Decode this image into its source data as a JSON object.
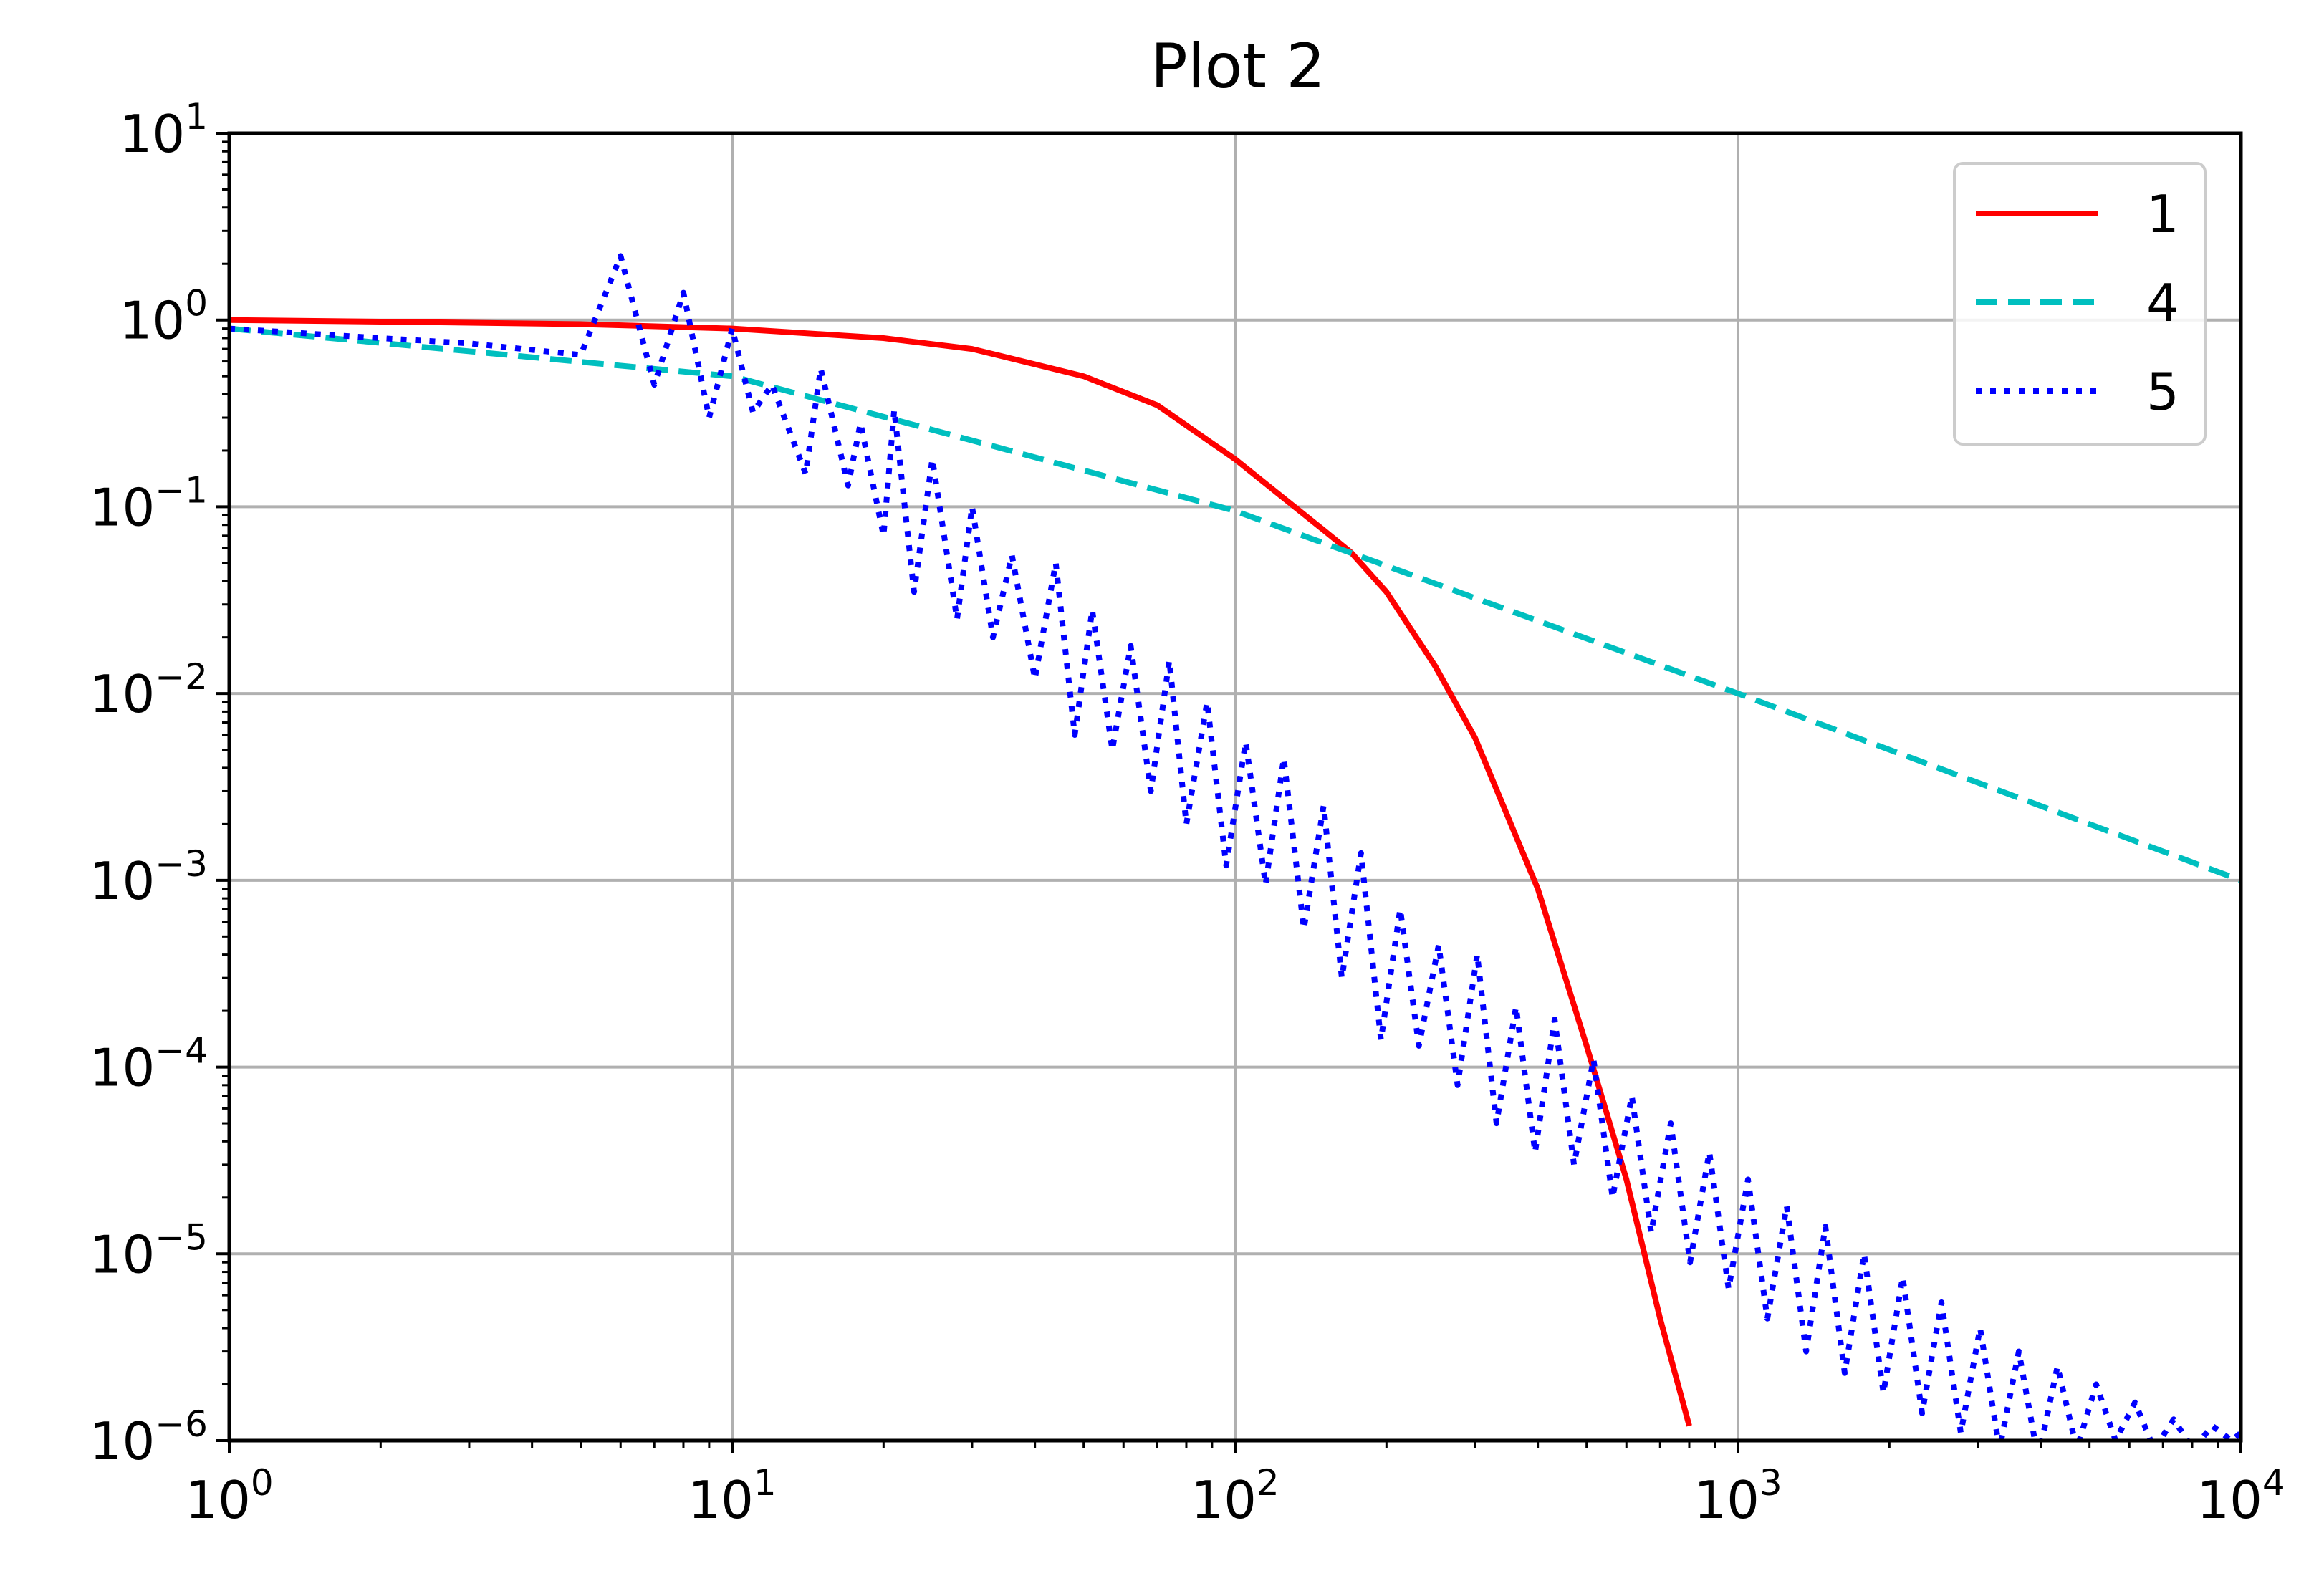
{
  "chart_data": {
    "type": "line",
    "title": "Plot 2",
    "xlabel": "",
    "ylabel": "",
    "xscale": "log",
    "yscale": "log",
    "xlim": [
      1,
      10000
    ],
    "ylim": [
      1e-06,
      10
    ],
    "grid": true,
    "legend_position": "top-right",
    "x_ticks": [
      {
        "value": 1,
        "base": "10",
        "exp": "0"
      },
      {
        "value": 10,
        "base": "10",
        "exp": "1"
      },
      {
        "value": 100,
        "base": "10",
        "exp": "2"
      },
      {
        "value": 1000,
        "base": "10",
        "exp": "3"
      },
      {
        "value": 10000,
        "base": "10",
        "exp": "4"
      }
    ],
    "y_ticks": [
      {
        "value": 10,
        "base": "10",
        "exp": "1"
      },
      {
        "value": 1,
        "base": "10",
        "exp": "0"
      },
      {
        "value": 0.1,
        "base": "10",
        "exp": "−1"
      },
      {
        "value": 0.01,
        "base": "10",
        "exp": "−2"
      },
      {
        "value": 0.001,
        "base": "10",
        "exp": "−3"
      },
      {
        "value": 0.0001,
        "base": "10",
        "exp": "−4"
      },
      {
        "value": 1e-05,
        "base": "10",
        "exp": "−5"
      },
      {
        "value": 1e-06,
        "base": "10",
        "exp": "−6"
      }
    ],
    "series": [
      {
        "name": "1",
        "color": "#ff0000",
        "style": "solid",
        "x": [
          1,
          2,
          5,
          10,
          20,
          30,
          50,
          70,
          100,
          150,
          170,
          200,
          250,
          300,
          400,
          500,
          600,
          700,
          800
        ],
        "y": [
          1.0,
          0.98,
          0.95,
          0.9,
          0.8,
          0.7,
          0.5,
          0.35,
          0.18,
          0.075,
          0.057,
          0.035,
          0.014,
          0.0058,
          0.0009,
          0.00013,
          2.5e-05,
          4.5e-06,
          1.2e-06
        ]
      },
      {
        "name": "4",
        "color": "#00bfbf",
        "style": "dashed",
        "x": [
          1,
          10,
          100,
          1000,
          10000
        ],
        "y": [
          0.9,
          0.5,
          0.095,
          0.01,
          0.001
        ]
      },
      {
        "name": "5",
        "color": "#0000ff",
        "style": "dotted",
        "x": [
          1,
          2,
          3,
          5,
          6,
          7,
          8,
          9,
          10,
          11,
          12,
          14,
          15,
          17,
          18,
          20,
          21,
          23,
          25,
          28,
          30,
          33,
          36,
          40,
          44,
          48,
          52,
          57,
          62,
          68,
          74,
          80,
          88,
          96,
          105,
          115,
          125,
          137,
          150,
          163,
          178,
          195,
          213,
          232,
          254,
          277,
          303,
          331,
          362,
          395,
          432,
          472,
          516,
          563,
          615,
          672,
          735,
          803,
          877,
          958,
          1047,
          1144,
          1250,
          1366,
          1492,
          1630,
          1781,
          1946,
          2126,
          2323,
          2538,
          2773,
          3030,
          3311,
          3618,
          3953,
          4319,
          4719,
          5156,
          5634,
          6156,
          6726,
          7349,
          8030,
          8773,
          9586,
          10000
        ],
        "y": [
          0.9,
          0.8,
          0.75,
          0.65,
          2.2,
          0.45,
          1.4,
          0.3,
          0.9,
          0.32,
          0.45,
          0.15,
          0.55,
          0.13,
          0.28,
          0.07,
          0.33,
          0.035,
          0.18,
          0.025,
          0.1,
          0.02,
          0.055,
          0.012,
          0.05,
          0.006,
          0.028,
          0.005,
          0.018,
          0.003,
          0.015,
          0.002,
          0.009,
          0.0012,
          0.0055,
          0.00095,
          0.0045,
          0.00055,
          0.0025,
          0.0003,
          0.0014,
          0.00014,
          0.0007,
          0.00013,
          0.00045,
          8e-05,
          0.0004,
          5e-05,
          0.00021,
          3.5e-05,
          0.00018,
          3e-05,
          0.00011,
          2e-05,
          7e-05,
          1.3e-05,
          5e-05,
          9e-06,
          3.5e-05,
          6.5e-06,
          2.5e-05,
          4.5e-06,
          1.8e-05,
          3e-06,
          1.4e-05,
          2.3e-06,
          1e-05,
          1.8e-06,
          7.5e-06,
          1.4e-06,
          5.5e-06,
          1.1e-06,
          4e-06,
          9e-07,
          3e-06,
          8e-07,
          2.5e-06,
          9e-07,
          2e-06,
          1e-06,
          1.6e-06,
          9e-07,
          1.3e-06,
          9e-07,
          1.2e-06,
          1e-06,
          1.1e-06
        ]
      }
    ]
  }
}
